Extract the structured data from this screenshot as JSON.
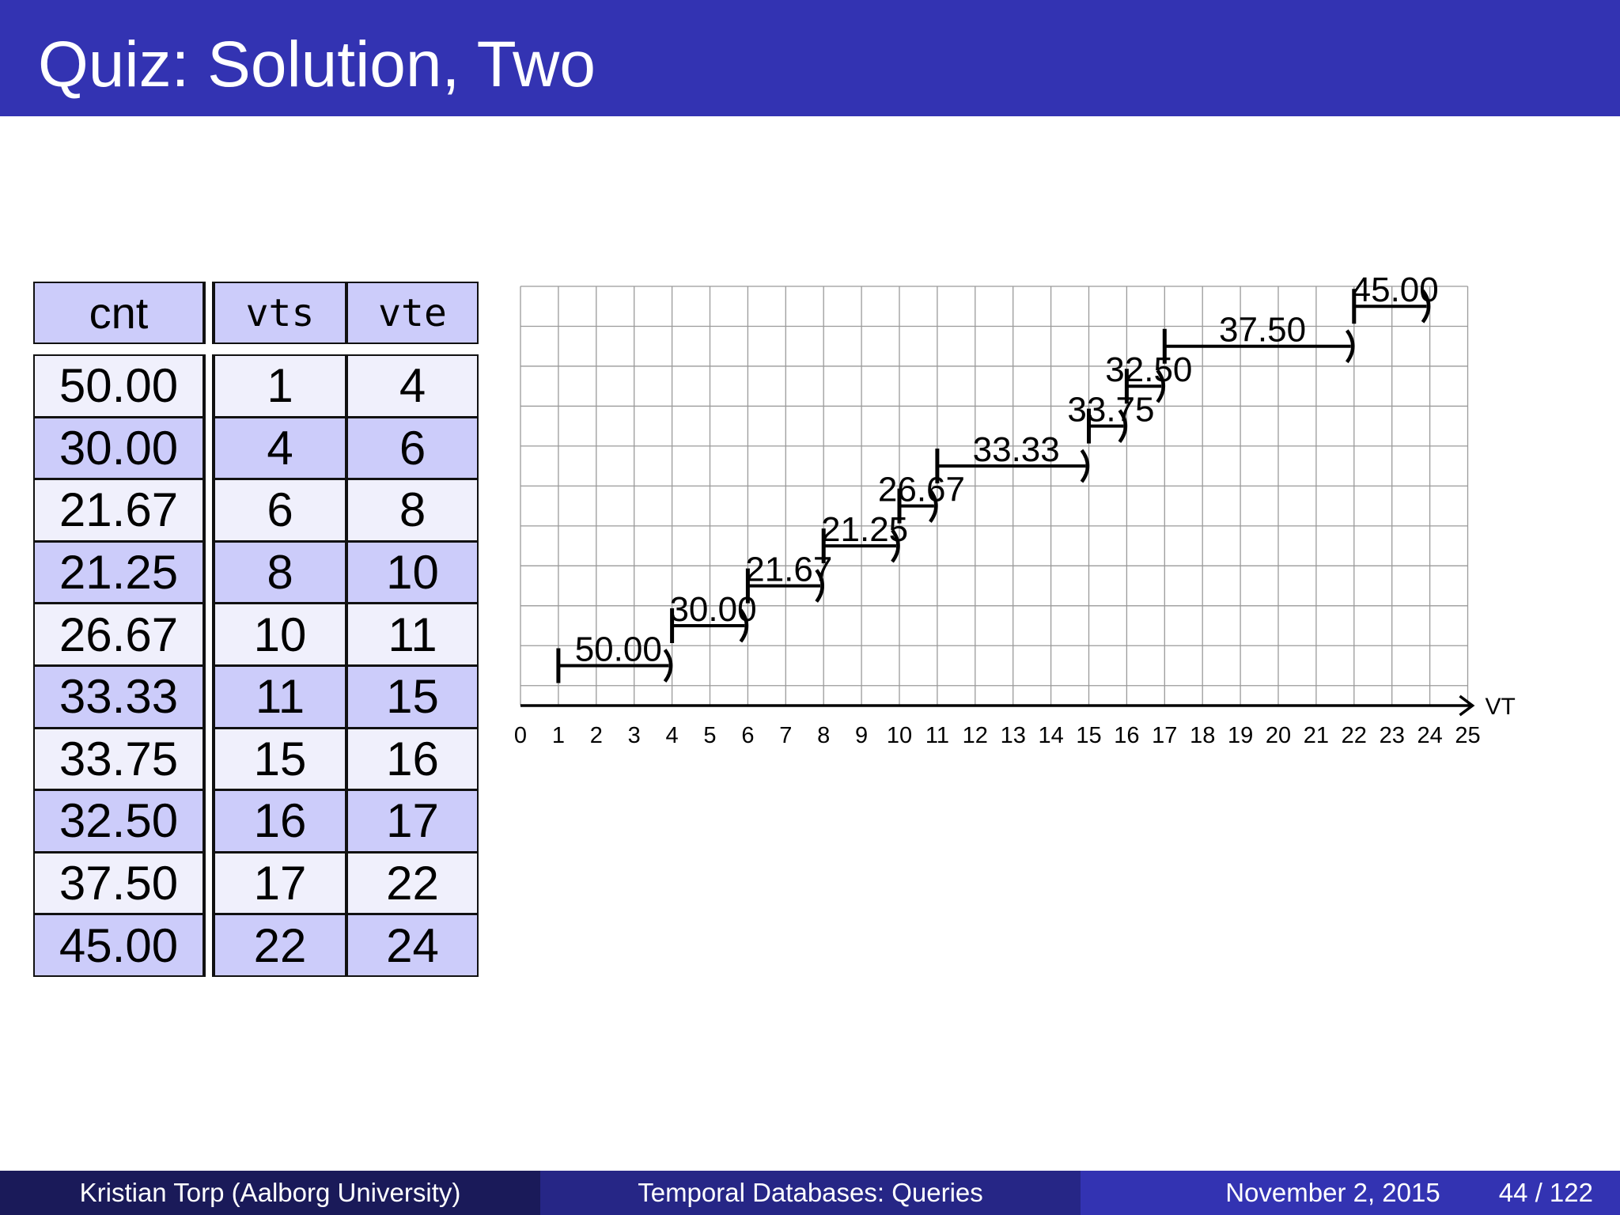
{
  "slide": {
    "title": "Quiz: Solution, Two"
  },
  "table": {
    "headers": [
      "cnt",
      "vts",
      "vte"
    ],
    "rows": [
      [
        "50.00",
        "1",
        "4"
      ],
      [
        "30.00",
        "4",
        "6"
      ],
      [
        "21.67",
        "6",
        "8"
      ],
      [
        "21.25",
        "8",
        "10"
      ],
      [
        "26.67",
        "10",
        "11"
      ],
      [
        "33.33",
        "11",
        "15"
      ],
      [
        "33.75",
        "15",
        "16"
      ],
      [
        "32.50",
        "16",
        "17"
      ],
      [
        "37.50",
        "17",
        "22"
      ],
      [
        "45.00",
        "22",
        "24"
      ]
    ]
  },
  "chart_data": {
    "type": "timeline",
    "xlabel": "VT",
    "xlim": [
      0,
      25
    ],
    "xticks": [
      "0",
      "1",
      "2",
      "3",
      "4",
      "5",
      "6",
      "7",
      "8",
      "9",
      "10",
      "11",
      "12",
      "13",
      "14",
      "15",
      "16",
      "17",
      "18",
      "19",
      "20",
      "21",
      "22",
      "23",
      "24",
      "25"
    ],
    "grid": true,
    "intervals": [
      {
        "label": "50.00",
        "start": 1,
        "end": 4
      },
      {
        "label": "30.00",
        "start": 4,
        "end": 6
      },
      {
        "label": "21.67",
        "start": 6,
        "end": 8
      },
      {
        "label": "21.25",
        "start": 8,
        "end": 10
      },
      {
        "label": "26.67",
        "start": 10,
        "end": 11
      },
      {
        "label": "33.33",
        "start": 11,
        "end": 15
      },
      {
        "label": "33.75",
        "start": 15,
        "end": 16
      },
      {
        "label": "32.50",
        "start": 16,
        "end": 17
      },
      {
        "label": "37.50",
        "start": 17,
        "end": 22
      },
      {
        "label": "45.00",
        "start": 22,
        "end": 24
      }
    ]
  },
  "footer": {
    "author": "Kristian Torp  (Aalborg University)",
    "talk_title": "Temporal Databases: Queries",
    "date": "November 2, 2015",
    "page": "44 / 122"
  },
  "colors": {
    "title_bar": "#3333b2",
    "header_cell": "#ccccfa",
    "row_light": "#f0f0fc",
    "row_dark": "#ccccfa",
    "footer_left": "#1a1a59",
    "footer_mid": "#262686",
    "footer_right": "#3333b2"
  }
}
